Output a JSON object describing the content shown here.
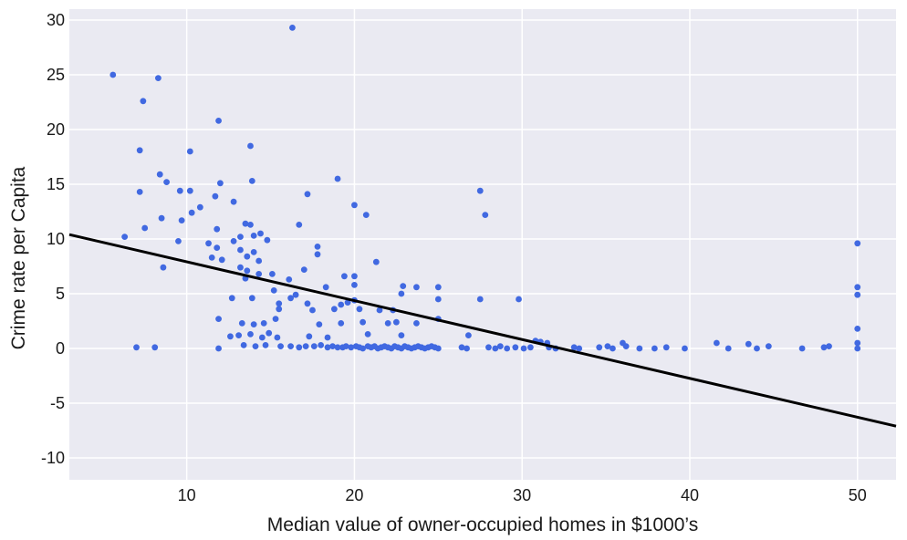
{
  "chart_data": {
    "type": "scatter",
    "title": "",
    "xlabel": "Median value of owner-occupied homes in $1000’s",
    "ylabel": "Crime rate per Capita",
    "xlim": [
      3,
      52.3
    ],
    "ylim": [
      -12,
      31
    ],
    "xticks": [
      10,
      20,
      30,
      40,
      50
    ],
    "yticks": [
      -10,
      -5,
      0,
      5,
      10,
      15,
      20,
      25,
      30
    ],
    "grid": true,
    "colors": {
      "background": "#eaeaf2",
      "grid": "#ffffff",
      "point": "#4169e1",
      "line": "#000000"
    },
    "regression_line": {
      "x": [
        3,
        52.3
      ],
      "y": [
        10.4,
        -7.1
      ]
    },
    "series": [
      {
        "points": [
          [
            5.6,
            25.0
          ],
          [
            8.3,
            24.7
          ],
          [
            16.3,
            29.3
          ],
          [
            7.4,
            22.6
          ],
          [
            11.9,
            20.8
          ],
          [
            7.2,
            18.1
          ],
          [
            10.2,
            18.0
          ],
          [
            13.8,
            18.5
          ],
          [
            8.4,
            15.9
          ],
          [
            8.8,
            15.2
          ],
          [
            7.2,
            14.3
          ],
          [
            9.6,
            14.4
          ],
          [
            10.2,
            14.4
          ],
          [
            12.0,
            15.1
          ],
          [
            11.7,
            13.9
          ],
          [
            12.8,
            13.4
          ],
          [
            13.9,
            15.3
          ],
          [
            17.2,
            14.1
          ],
          [
            19.0,
            15.5
          ],
          [
            20.0,
            13.1
          ],
          [
            20.7,
            12.2
          ],
          [
            27.5,
            14.4
          ],
          [
            27.8,
            12.2
          ],
          [
            6.3,
            10.2
          ],
          [
            7.5,
            11.0
          ],
          [
            8.5,
            11.9
          ],
          [
            9.7,
            11.7
          ],
          [
            10.3,
            12.4
          ],
          [
            10.8,
            12.9
          ],
          [
            11.8,
            10.9
          ],
          [
            13.5,
            11.4
          ],
          [
            13.8,
            11.3
          ],
          [
            16.7,
            11.3
          ],
          [
            9.5,
            9.8
          ],
          [
            11.3,
            9.6
          ],
          [
            11.8,
            9.2
          ],
          [
            12.8,
            9.8
          ],
          [
            13.2,
            10.2
          ],
          [
            14.0,
            10.3
          ],
          [
            14.4,
            10.5
          ],
          [
            14.8,
            9.9
          ],
          [
            11.5,
            8.3
          ],
          [
            12.1,
            8.1
          ],
          [
            13.2,
            9.0
          ],
          [
            13.6,
            8.4
          ],
          [
            14.0,
            8.8
          ],
          [
            14.3,
            8.0
          ],
          [
            8.6,
            7.4
          ],
          [
            13.2,
            7.4
          ],
          [
            13.6,
            7.1
          ],
          [
            14.3,
            6.8
          ],
          [
            15.1,
            6.8
          ],
          [
            17.0,
            7.2
          ],
          [
            17.8,
            8.6
          ],
          [
            17.8,
            9.3
          ],
          [
            21.3,
            7.9
          ],
          [
            13.5,
            6.4
          ],
          [
            16.1,
            6.3
          ],
          [
            19.4,
            6.6
          ],
          [
            20.0,
            6.6
          ],
          [
            15.2,
            5.3
          ],
          [
            16.5,
            4.9
          ],
          [
            18.3,
            5.6
          ],
          [
            20.0,
            5.8
          ],
          [
            22.8,
            5.0
          ],
          [
            22.9,
            5.7
          ],
          [
            23.7,
            5.6
          ],
          [
            25.0,
            5.6
          ],
          [
            12.7,
            4.6
          ],
          [
            13.9,
            4.6
          ],
          [
            15.5,
            4.1
          ],
          [
            16.2,
            4.6
          ],
          [
            17.2,
            4.1
          ],
          [
            19.2,
            4.0
          ],
          [
            19.6,
            4.2
          ],
          [
            20.0,
            4.4
          ],
          [
            25.0,
            4.5
          ],
          [
            27.5,
            4.5
          ],
          [
            29.8,
            4.5
          ],
          [
            15.5,
            3.6
          ],
          [
            17.5,
            3.5
          ],
          [
            18.8,
            3.6
          ],
          [
            20.3,
            3.6
          ],
          [
            21.5,
            3.5
          ],
          [
            22.3,
            3.5
          ],
          [
            11.9,
            2.7
          ],
          [
            13.3,
            2.3
          ],
          [
            14.0,
            2.2
          ],
          [
            14.6,
            2.3
          ],
          [
            15.3,
            2.7
          ],
          [
            17.9,
            2.2
          ],
          [
            19.2,
            2.3
          ],
          [
            20.5,
            2.4
          ],
          [
            22.0,
            2.3
          ],
          [
            22.5,
            2.4
          ],
          [
            23.7,
            2.3
          ],
          [
            25.0,
            2.7
          ],
          [
            50.0,
            9.6
          ],
          [
            50.0,
            5.6
          ],
          [
            50.0,
            4.9
          ],
          [
            50.0,
            1.8
          ],
          [
            50.0,
            0.5
          ],
          [
            50.0,
            0.0
          ],
          [
            48.3,
            0.2
          ],
          [
            12.6,
            1.1
          ],
          [
            13.1,
            1.2
          ],
          [
            13.8,
            1.3
          ],
          [
            14.5,
            1.0
          ],
          [
            14.9,
            1.4
          ],
          [
            15.4,
            1.0
          ],
          [
            17.3,
            1.1
          ],
          [
            18.4,
            1.0
          ],
          [
            20.8,
            1.3
          ],
          [
            22.8,
            1.2
          ],
          [
            26.8,
            1.2
          ],
          [
            7.0,
            0.1
          ],
          [
            8.1,
            0.1
          ],
          [
            11.9,
            0.0
          ],
          [
            13.4,
            0.3
          ],
          [
            14.1,
            0.2
          ],
          [
            14.7,
            0.3
          ],
          [
            15.6,
            0.2
          ],
          [
            16.2,
            0.2
          ],
          [
            16.7,
            0.1
          ],
          [
            17.1,
            0.2
          ],
          [
            17.6,
            0.2
          ],
          [
            18.0,
            0.3
          ],
          [
            18.4,
            0.1
          ],
          [
            18.7,
            0.2
          ],
          [
            19.0,
            0.1
          ],
          [
            19.3,
            0.1
          ],
          [
            19.5,
            0.2
          ],
          [
            19.8,
            0.1
          ],
          [
            20.1,
            0.2
          ],
          [
            20.3,
            0.1
          ],
          [
            20.5,
            0.0
          ],
          [
            20.8,
            0.2
          ],
          [
            21.0,
            0.1
          ],
          [
            21.2,
            0.2
          ],
          [
            21.4,
            0.0
          ],
          [
            21.6,
            0.1
          ],
          [
            21.8,
            0.2
          ],
          [
            22.0,
            0.1
          ],
          [
            22.2,
            0.0
          ],
          [
            22.4,
            0.2
          ],
          [
            22.6,
            0.1
          ],
          [
            22.8,
            0.0
          ],
          [
            23.0,
            0.2
          ],
          [
            23.2,
            0.1
          ],
          [
            23.4,
            0.0
          ],
          [
            23.6,
            0.1
          ],
          [
            23.8,
            0.2
          ],
          [
            24.0,
            0.1
          ],
          [
            24.2,
            0.0
          ],
          [
            24.4,
            0.1
          ],
          [
            24.6,
            0.2
          ],
          [
            24.8,
            0.1
          ],
          [
            25.0,
            0.0
          ],
          [
            26.4,
            0.1
          ],
          [
            26.7,
            0.0
          ],
          [
            28.0,
            0.1
          ],
          [
            28.4,
            0.0
          ],
          [
            28.7,
            0.2
          ],
          [
            29.1,
            0.0
          ],
          [
            29.6,
            0.1
          ],
          [
            30.1,
            0.0
          ],
          [
            30.5,
            0.1
          ],
          [
            30.8,
            0.7
          ],
          [
            31.1,
            0.6
          ],
          [
            31.5,
            0.5
          ],
          [
            31.6,
            0.1
          ],
          [
            32.0,
            0.0
          ],
          [
            33.1,
            0.1
          ],
          [
            33.4,
            0.0
          ],
          [
            34.6,
            0.1
          ],
          [
            35.1,
            0.2
          ],
          [
            35.4,
            0.0
          ],
          [
            36.0,
            0.5
          ],
          [
            36.2,
            0.2
          ],
          [
            37.0,
            0.0
          ],
          [
            37.9,
            0.0
          ],
          [
            38.6,
            0.1
          ],
          [
            39.7,
            0.0
          ],
          [
            41.6,
            0.5
          ],
          [
            42.3,
            0.0
          ],
          [
            43.5,
            0.4
          ],
          [
            44.0,
            0.0
          ],
          [
            44.7,
            0.2
          ],
          [
            46.7,
            0.0
          ],
          [
            48.0,
            0.1
          ]
        ]
      }
    ]
  }
}
